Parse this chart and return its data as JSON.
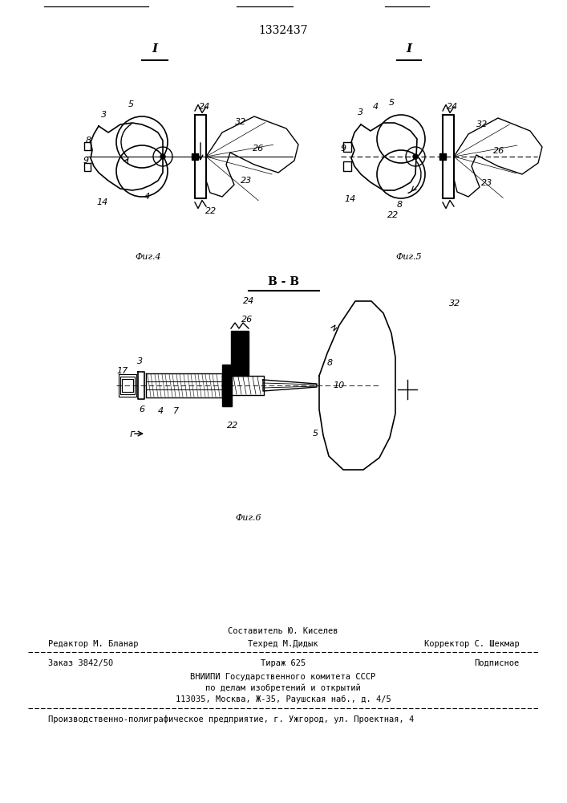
{
  "patent_number": "1332437",
  "bg_color": "#ffffff",
  "line_color": "#000000",
  "fig_width": 7.07,
  "fig_height": 10.0,
  "footer": {
    "sestavitel_text": "Составитель Ю. Киселев",
    "editor_text": "Редактор М. Бланар",
    "techred_text": "Техред М.Дидык",
    "corrector_text": "Корректор С. Шекмар",
    "order_text": "Заказ 3842/50",
    "tirazh_text": "Тираж 625",
    "podpisnoe_text": "Подписное",
    "vniiipi_text": "ВНИИПИ Государственного комитета СССР",
    "podelu_text": "по делам изобретений и открытий",
    "address_text": "113035, Москва, Ж-35, Раушская наб., д. 4/5",
    "proizv_text": "Производственно-полиграфическое предприятие, г. Ужгород, ул. Проектная, 4"
  }
}
